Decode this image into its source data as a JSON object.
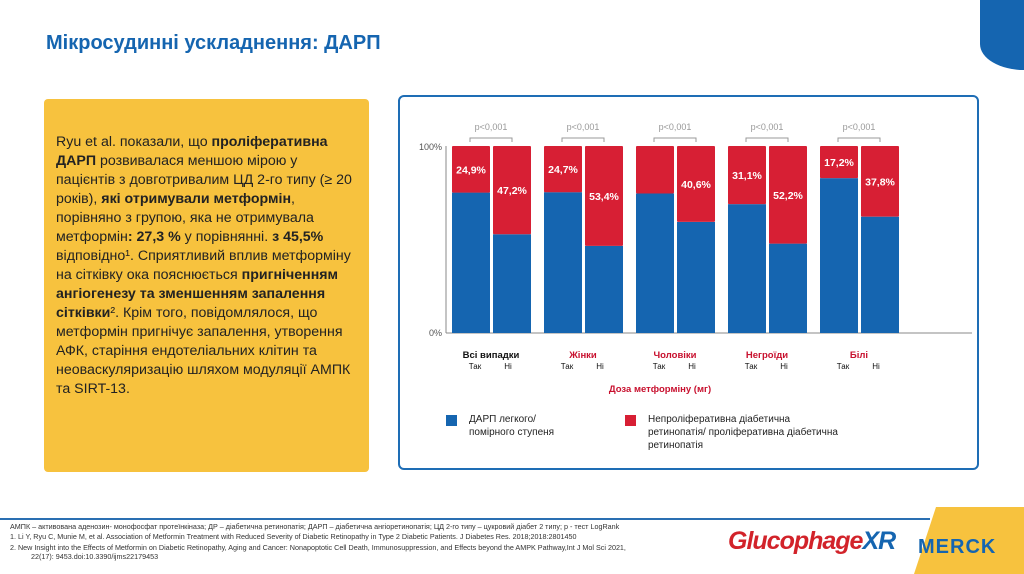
{
  "title": "Мікросудинні ускладнення: ДАРП",
  "panel_text": [
    {
      "t": "Ryu et al. показали, що ",
      "b": false
    },
    {
      "t": "проліферативна ДАРП",
      "b": true
    },
    {
      "t": " розвивалася меншою мірою у пацієнтів з довготривалим ЦД 2-го типу (≥ 20 років), ",
      "b": false
    },
    {
      "t": "які отримували метформін",
      "b": true
    },
    {
      "t": ", порівняно з групою, яка не отримувала метформін",
      "b": false
    },
    {
      "t": ": 27,3 %",
      "b": true
    },
    {
      "t": " у порівнянні. ",
      "b": false
    },
    {
      "t": "з 45,5%",
      "b": true
    },
    {
      "t": " відповідно¹. Сприятливий вплив метформіну на сітківку ока пояснюється ",
      "b": false
    },
    {
      "t": "пригніченням ангіогенезу та зменшенням запалення сітківки",
      "b": true
    },
    {
      "t": "². Крім того, повідомлялося, що метформін пригнічує запалення, утворення АФК, старіння ендотеліальних клітин та неоваскуляризацію шляхом модуляції АМПК та SIRT-13.",
      "b": false
    }
  ],
  "colors": {
    "blue": "#1565b0",
    "red": "#d71f34",
    "accent": "#f7c23e"
  },
  "chart_data": {
    "type": "bar",
    "stacked": true,
    "ylim": [
      0,
      100
    ],
    "yticks": [
      "0%",
      "100%"
    ],
    "xlabel": "Доза метформіну (мг)",
    "groups": [
      {
        "name": "Всі випадки",
        "color": "#111",
        "bars": [
          {
            "label": "Так",
            "red": 24.9,
            "text": "24,9%"
          },
          {
            "label": "Ні",
            "red": 47.2,
            "text": "47,2%"
          }
        ],
        "p": "p<0,001"
      },
      {
        "name": "Жінки",
        "color": "#c8102e",
        "bars": [
          {
            "label": "Так",
            "red": 24.7,
            "text": "24,7%"
          },
          {
            "label": "Ні",
            "red": 53.4,
            "text": "53,4%"
          }
        ],
        "p": "p<0,001"
      },
      {
        "name": "Чоловіки",
        "color": "#c8102e",
        "bars": [
          {
            "label": "Так",
            "red": 25.4,
            "text": ""
          },
          {
            "label": "Ні",
            "red": 40.6,
            "text": "40,6%"
          }
        ],
        "p": "p<0,001"
      },
      {
        "name": "Негроїди",
        "color": "#c8102e",
        "bars": [
          {
            "label": "Так",
            "red": 31.1,
            "text": "31,1%"
          },
          {
            "label": "Ні",
            "red": 52.2,
            "text": "52,2%"
          }
        ],
        "p": "p<0,001"
      },
      {
        "name": "Білі",
        "color": "#c8102e",
        "bars": [
          {
            "label": "Так",
            "red": 17.2,
            "text": "17,2%"
          },
          {
            "label": "Ні",
            "red": 37.8,
            "text": "37,8%"
          }
        ],
        "p": "p<0,001"
      }
    ],
    "legend": [
      {
        "color": "#1565b0",
        "lines": [
          "ДАРП легкого/",
          "помірного ступеня"
        ]
      },
      {
        "color": "#d71f34",
        "lines": [
          "Непроліферативна діабетична",
          "ретинопатія/ проліферативна діабетична",
          "ретинопатія"
        ]
      }
    ]
  },
  "footer": {
    "abbrev": "АМПК – активована аденозин- монофосфат протеїнкіназа; ДР – діабетична ретинопатія; ДАРП – діабетична ангіоретинопатія; ЦД 2-го типу – цукровий діабет 2 типу; p - тест LogRank",
    "ref1": "1.     Li Y, Ryu C, Munie M, et al. Association of Metformin Treatment with Reduced Severity of Diabetic Retinopathy in Type 2 Diabetic Patients. J Diabetes Res. 2018;2018:2801450",
    "ref2": "2.     New Insight into the Effects of Metformin on Diabetic Retinopathy, Aging and Cancer: Nonapoptotic Cell Death, Immunosuppression, and Effects beyond the AMPK Pathway,Int J Mol Sci 2021,",
    "ref2b": "22(17): 9453.doi:10.3390/ijms22179453",
    "logo1": "Glucophage XR",
    "logo2": "MERCK"
  }
}
